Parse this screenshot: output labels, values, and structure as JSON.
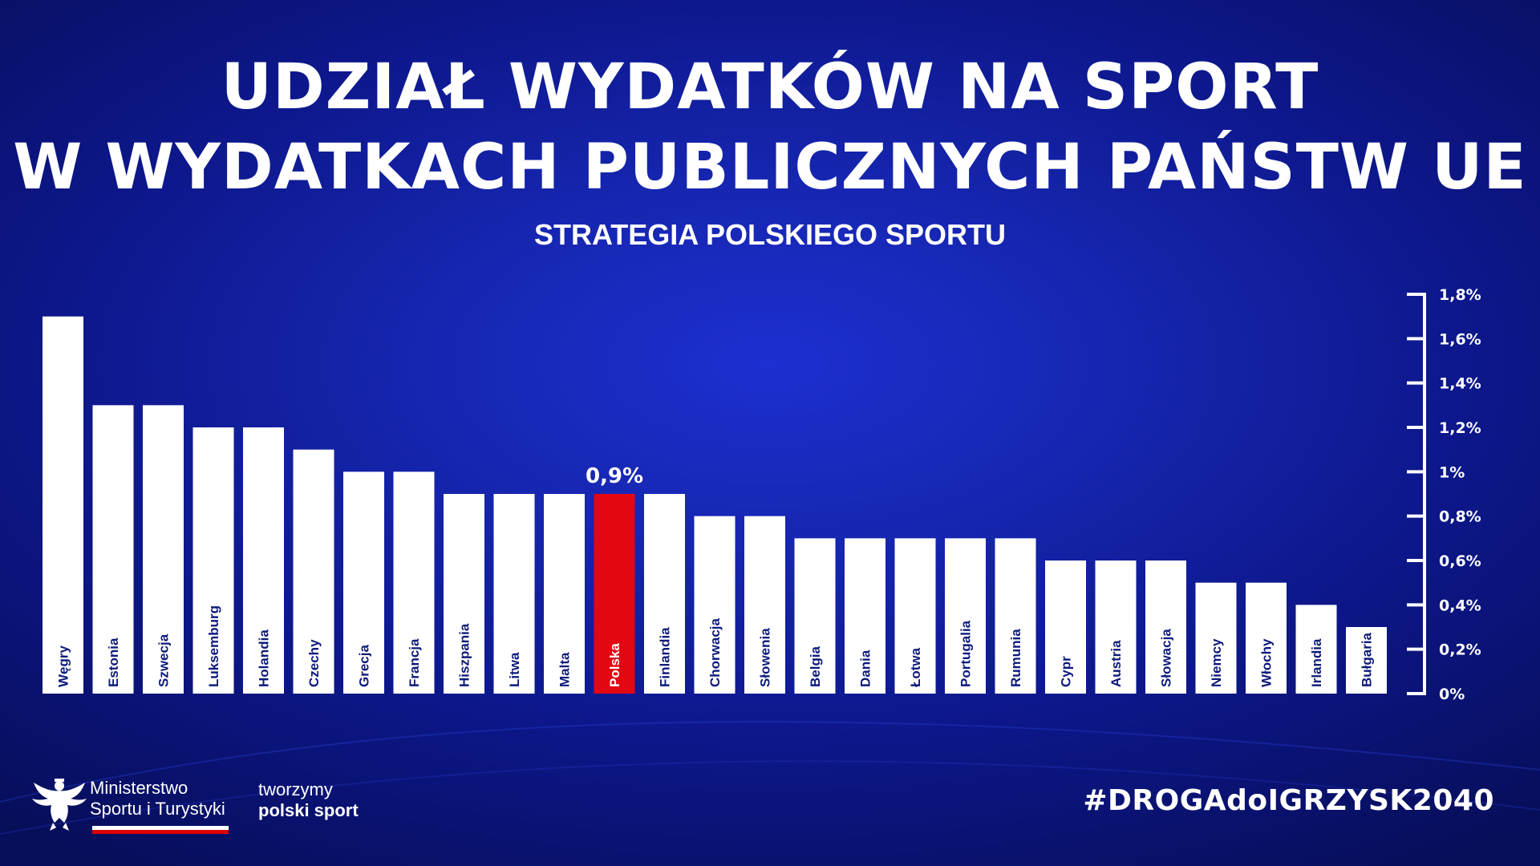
{
  "header": {
    "title_line1": "UDZIAŁ WYDATKÓW NA SPORT",
    "title_line2": "W WYDATKACH PUBLICZNYCH PAŃSTW UE",
    "subtitle": "STRATEGIA POLSKIEGO SPORTU"
  },
  "chart_data": {
    "type": "bar",
    "title": "UDZIAŁ WYDATKÓW NA SPORT W WYDATKACH PUBLICZNYCH PAŃSTW UE",
    "subtitle": "STRATEGIA POLSKIEGO SPORTU",
    "categories": [
      "Węgry",
      "Estonia",
      "Szwecja",
      "Luksemburg",
      "Holandia",
      "Czechy",
      "Grecja",
      "Francja",
      "Hiszpania",
      "Litwa",
      "Malta",
      "Polska",
      "Finlandia",
      "Chorwacja",
      "Słowenia",
      "Belgia",
      "Dania",
      "Łotwa",
      "Portugalia",
      "Rumunia",
      "Cypr",
      "Austria",
      "Słowacja",
      "Niemcy",
      "Włochy",
      "Irlandia",
      "Bułgaria"
    ],
    "values": [
      1.7,
      1.3,
      1.3,
      1.2,
      1.2,
      1.1,
      1.0,
      1.0,
      0.9,
      0.9,
      0.9,
      0.9,
      0.9,
      0.8,
      0.8,
      0.7,
      0.7,
      0.7,
      0.7,
      0.7,
      0.6,
      0.6,
      0.6,
      0.5,
      0.5,
      0.4,
      0.3
    ],
    "highlight": "Polska",
    "highlight_label": "0,9%",
    "y_ticks": [
      "0%",
      "0,2%",
      "0,4%",
      "0,6%",
      "0,8%",
      "1%",
      "1,2%",
      "1,4%",
      "1,6%",
      "1,8%"
    ],
    "ylim": [
      0,
      1.8
    ],
    "axis_position": "right",
    "colors": {
      "bar": "#ffffff",
      "highlight": "#e30613",
      "bar_label_dark": "#0d1a7a",
      "bar_label_light": "#ffffff"
    }
  },
  "footer": {
    "ministry_line1": "Ministerstwo",
    "ministry_line2": "Sportu i Turystyki",
    "slogan_line1": "tworzymy",
    "slogan_line2": "polski sport",
    "hashtag": "#DROGAdoIGRZYSK2040",
    "logo_icon": "white-eagle-emblem-icon"
  }
}
